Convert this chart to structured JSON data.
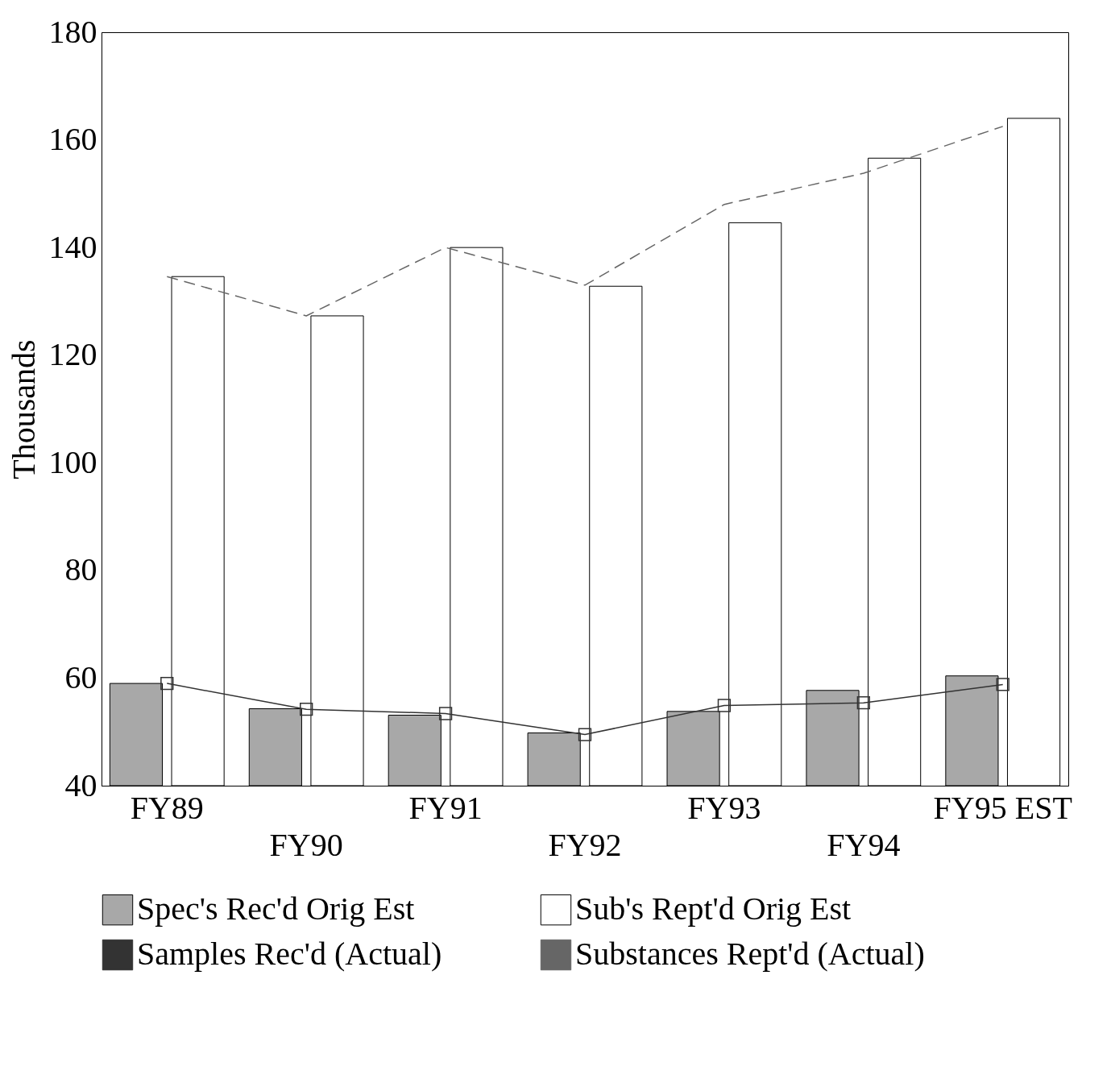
{
  "chart_data": {
    "type": "bar",
    "ylabel": "Thousands",
    "categories": [
      "FY89",
      "FY90",
      "FY91",
      "FY92",
      "FY93",
      "FY94",
      "FY95 EST"
    ],
    "ylim": [
      40,
      180
    ],
    "yticks": [
      40,
      60,
      80,
      100,
      120,
      140,
      160,
      180
    ],
    "grid": false,
    "legend": "bottom",
    "series": [
      {
        "name": "Spec's Rec'd Orig Est",
        "color": "#a8a8a8",
        "values": [
          59,
          54.3,
          53.1,
          49.8,
          53.8,
          57.7,
          60.4
        ]
      },
      {
        "name": "Sub's Rept'd Orig Est",
        "color": "#ffffff",
        "values": [
          134.6,
          127.3,
          140,
          132.8,
          144.6,
          156.6,
          164
        ]
      },
      {
        "name": "Samples Rec'd (Actual)",
        "type": "line",
        "color": "#333333",
        "marker": "square",
        "line_style": "solid",
        "values": [
          59,
          54.2,
          53.4,
          49.5,
          54.9,
          55.4,
          58.8
        ]
      },
      {
        "name": "Substances Rept'd (Actual)",
        "type": "line",
        "color": "#666666",
        "marker": "none",
        "line_style": "dashed",
        "values": [
          134.6,
          127.3,
          140,
          133,
          148,
          153.8,
          162.5
        ]
      }
    ]
  }
}
